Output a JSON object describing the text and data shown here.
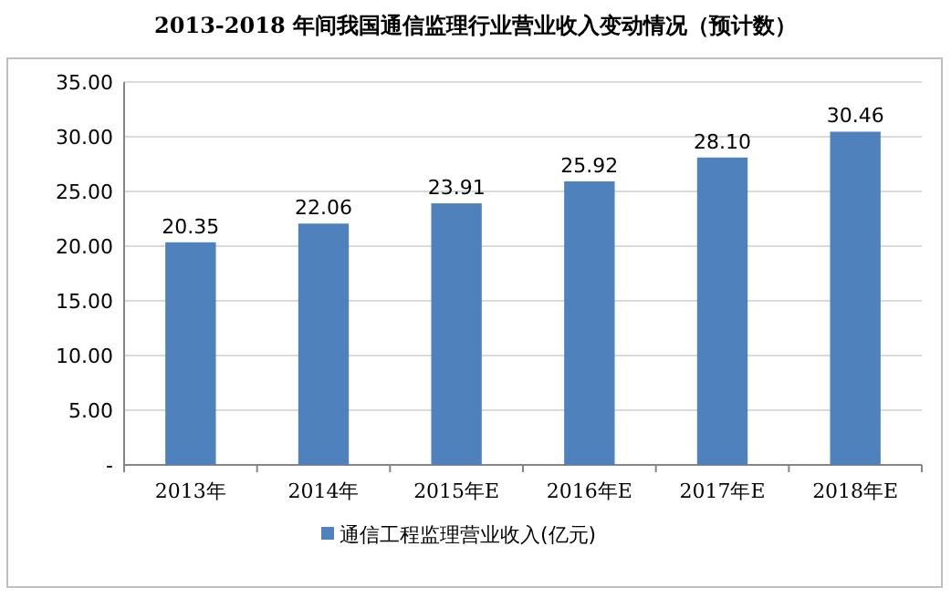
{
  "chart_data": {
    "type": "bar",
    "title": "2013-2018 年间我国通信监理行业营业收入变动情况（预计数）",
    "categories": [
      "2013年",
      "2014年",
      "2015年E",
      "2016年E",
      "2017年E",
      "2018年E"
    ],
    "series": [
      {
        "name": "通信工程监理营业收入(亿元)",
        "color": "#4f81bd",
        "values": [
          20.35,
          22.06,
          23.91,
          25.92,
          28.1,
          30.46
        ]
      }
    ],
    "value_labels": [
      "20.35",
      "22.06",
      "23.91",
      "25.92",
      "28.10",
      "30.46"
    ],
    "ylim": [
      0,
      35
    ],
    "yticks": [
      {
        "value": 0,
        "label": "-"
      },
      {
        "value": 5,
        "label": "5.00"
      },
      {
        "value": 10,
        "label": "10.00"
      },
      {
        "value": 15,
        "label": "15.00"
      },
      {
        "value": 20,
        "label": "20.00"
      },
      {
        "value": 25,
        "label": "25.00"
      },
      {
        "value": 30,
        "label": "30.00"
      },
      {
        "value": 35,
        "label": "35.00"
      }
    ],
    "grid": "y",
    "legend": "bottom"
  }
}
